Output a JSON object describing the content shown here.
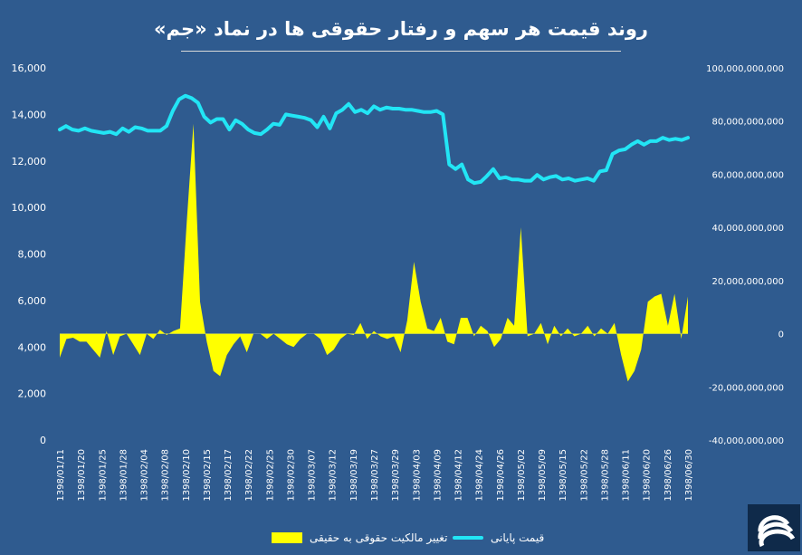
{
  "title": "روند قیمت هر سهم و رفتار حقوقی ها در نماد «جم»",
  "colors": {
    "background": "#2f5b8f",
    "price": "#22e5f5",
    "legal": "#ffff00",
    "text": "#ffffff"
  },
  "legend": {
    "legal_label": "تغییر مالکیت حقوقی به حقیقی",
    "price_label": "قیمت پایانی"
  },
  "chart_data": {
    "type": "line",
    "x_ticks": [
      "1398/01/11",
      "1398/01/20",
      "1398/01/25",
      "1398/01/28",
      "1398/02/04",
      "1398/02/08",
      "1398/02/10",
      "1398/02/15",
      "1398/02/17",
      "1398/02/22",
      "1398/02/25",
      "1398/02/30",
      "1398/03/07",
      "1398/03/12",
      "1398/03/19",
      "1398/03/27",
      "1398/03/29",
      "1398/04/03",
      "1398/04/09",
      "1398/04/12",
      "1398/04/24",
      "1398/04/26",
      "1398/05/02",
      "1398/05/09",
      "1398/05/15",
      "1398/05/22",
      "1398/05/28",
      "1398/06/11",
      "1398/06/20",
      "1398/06/26",
      "1398/06/30"
    ],
    "y_left": {
      "ticks": [
        "0",
        "2,000",
        "4,000",
        "6,000",
        "8,000",
        "10,000",
        "12,000",
        "14,000",
        "16,000"
      ],
      "min": 0,
      "max": 16000
    },
    "y_right": {
      "ticks": [
        "-40,000,000,000",
        "-20,000,000,000",
        "0",
        "20,000,000,000",
        "40,000,000,000",
        "60,000,000,000",
        "80,000,000,000",
        "100,000,000,000"
      ],
      "min": -40000000000,
      "max": 100000000000
    },
    "series": [
      {
        "name": "قیمت پایانی",
        "axis": "left",
        "kind": "line",
        "values": [
          13350,
          13500,
          13350,
          13300,
          13400,
          13300,
          13250,
          13200,
          13250,
          13150,
          13400,
          13250,
          13450,
          13400,
          13300,
          13300,
          13300,
          13500,
          14150,
          14650,
          14800,
          14700,
          14500,
          13900,
          13650,
          13800,
          13800,
          13350,
          13750,
          13600,
          13350,
          13200,
          13150,
          13350,
          13600,
          13550,
          14000,
          13950,
          13900,
          13850,
          13750,
          13450,
          13900,
          13400,
          14050,
          14200,
          14450,
          14100,
          14200,
          14050,
          14350,
          14200,
          14300,
          14250,
          14250,
          14200,
          14200,
          14150,
          14100,
          14100,
          14150,
          14000,
          11850,
          11650,
          11850,
          11200,
          11050,
          11100,
          11350,
          11650,
          11250,
          11300,
          11200,
          11200,
          11150,
          11150,
          11400,
          11200,
          11300,
          11350,
          11200,
          11250,
          11150,
          11200,
          11250,
          11150,
          11550,
          11600,
          12300,
          12450,
          12500,
          12700,
          12850,
          12700,
          12850,
          12850,
          13000,
          12900,
          12950,
          12900,
          13000
        ]
      },
      {
        "name": "تغییر مالکیت حقوقی به حقیقی",
        "axis": "right",
        "kind": "area",
        "values": [
          -9000000000,
          -2000000000,
          -1500000000,
          -3000000000,
          -3000000000,
          -6000000000,
          -9000000000,
          1000000000,
          -8000000000,
          -1000000000,
          0,
          -4000000000,
          -8000000000,
          0,
          -2000000000,
          1500000000,
          -500000000,
          1000000000,
          2000000000,
          42000000000,
          79000000000,
          12000000000,
          -3000000000,
          -14000000000,
          -16000000000,
          -8000000000,
          -4000000000,
          -1000000000,
          -7000000000,
          0,
          0,
          -2000000000,
          0,
          -2000000000,
          -4000000000,
          -5000000000,
          -2000000000,
          0,
          0,
          -2000000000,
          -8000000000,
          -6000000000,
          -2000000000,
          0,
          -500000000,
          4000000000,
          -2000000000,
          1000000000,
          -1000000000,
          -2000000000,
          -1000000000,
          -7000000000,
          5000000000,
          27000000000,
          12000000000,
          2000000000,
          1000000000,
          6000000000,
          -3000000000,
          -4000000000,
          6000000000,
          6000000000,
          -1000000000,
          3000000000,
          1000000000,
          -5000000000,
          -2000000000,
          6000000000,
          3000000000,
          40000000000,
          -1000000000,
          0,
          4000000000,
          -4000000000,
          3000000000,
          -1000000000,
          2000000000,
          -1000000000,
          0,
          3000000000,
          -1000000000,
          2000000000,
          0,
          4000000000,
          -8000000000,
          -18000000000,
          -14000000000,
          -6000000000,
          12000000000,
          14000000000,
          15000000000,
          3000000000,
          15000000000,
          -2000000000,
          14000000000
        ]
      }
    ]
  }
}
